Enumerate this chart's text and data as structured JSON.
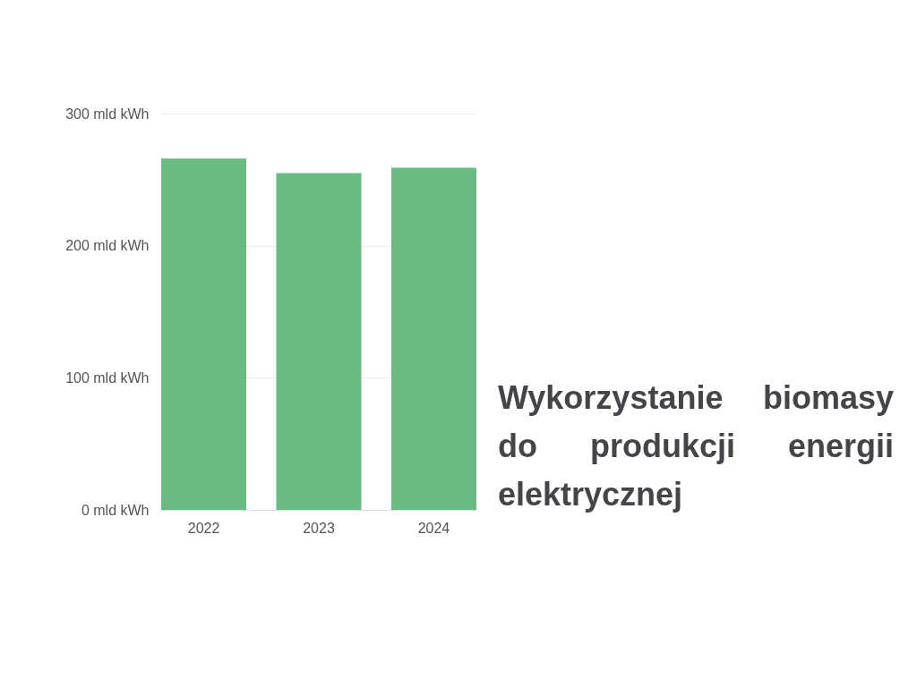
{
  "chart_data": {
    "type": "bar",
    "title": "Wykorzystanie biomasy do produkcji energii elektrycznej",
    "categories": [
      "2022",
      "2023",
      "2024"
    ],
    "values": [
      266,
      255,
      259
    ],
    "color": "#6aba83",
    "ylim": [
      0,
      300
    ],
    "yticks": [
      {
        "value": 0,
        "label": "0 mld kWh"
      },
      {
        "value": 100,
        "label": "100 mld kWh"
      },
      {
        "value": 200,
        "label": "200 mld kWh"
      },
      {
        "value": 300,
        "label": "300 mld kWh"
      }
    ],
    "grid": "y"
  }
}
